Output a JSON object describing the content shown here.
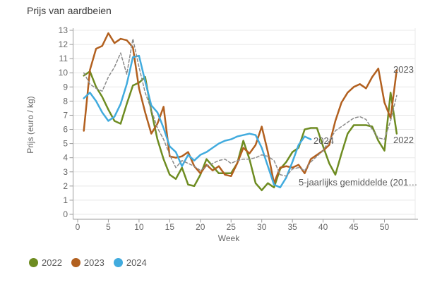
{
  "header": {
    "title": "Prijs van aardbeien"
  },
  "chart_data": {
    "type": "line",
    "title": "Prijs van aardbeien",
    "xlabel": "Week",
    "ylabel": "Prijs (euro / kg)",
    "xlim": [
      0,
      55
    ],
    "ylim": [
      0,
      13
    ],
    "x_ticks": [
      0,
      5,
      10,
      15,
      20,
      25,
      30,
      35,
      40,
      45,
      50
    ],
    "y_ticks": [
      0,
      1,
      2,
      3,
      4,
      5,
      6,
      7,
      8,
      9,
      10,
      11,
      12,
      13
    ],
    "grid": "horizontal",
    "legend_position": "bottom-left",
    "weeks": [
      1,
      2,
      3,
      4,
      5,
      6,
      7,
      8,
      9,
      10,
      11,
      12,
      13,
      14,
      15,
      16,
      17,
      18,
      19,
      20,
      21,
      22,
      23,
      24,
      25,
      26,
      27,
      28,
      29,
      30,
      31,
      32,
      33,
      34,
      35,
      36,
      37,
      38,
      39,
      40,
      41,
      42,
      43,
      44,
      45,
      46,
      47,
      48,
      49,
      50,
      51,
      52
    ],
    "series": [
      {
        "key": "2022",
        "name": "2022",
        "color": "#6e8c21",
        "style": "solid",
        "values": [
          9.8,
          10.1,
          9.0,
          8.3,
          7.4,
          6.6,
          6.4,
          7.8,
          9.1,
          9.3,
          9.7,
          7.3,
          5.3,
          3.9,
          2.8,
          2.5,
          3.3,
          2.1,
          2.0,
          2.8,
          3.9,
          3.4,
          2.9,
          2.9,
          2.9,
          3.6,
          5.2,
          3.9,
          2.2,
          1.7,
          2.2,
          1.9,
          3.2,
          3.7,
          4.4,
          4.7,
          6.0,
          6.1,
          6.1,
          4.8,
          3.6,
          2.8,
          4.3,
          5.7,
          6.3,
          6.3,
          6.3,
          6.2,
          5.2,
          4.5,
          8.6,
          5.7
        ]
      },
      {
        "key": "2023",
        "name": "2023",
        "color": "#b2601f",
        "style": "solid",
        "values": [
          5.9,
          10.2,
          11.7,
          11.9,
          12.8,
          12.1,
          12.4,
          12.3,
          11.8,
          8.9,
          7.2,
          5.7,
          6.4,
          7.6,
          4.1,
          4.0,
          4.1,
          4.4,
          3.4,
          2.9,
          3.5,
          3.1,
          3.4,
          2.8,
          2.7,
          3.6,
          4.7,
          4.3,
          4.9,
          6.2,
          4.4,
          2.2,
          3.3,
          3.4,
          3.3,
          3.5,
          2.9,
          3.9,
          4.2,
          4.5,
          4.9,
          6.6,
          7.9,
          8.6,
          9.0,
          9.2,
          8.9,
          9.7,
          10.3,
          7.9,
          6.8,
          10.2
        ]
      },
      {
        "key": "2024",
        "name": "2024",
        "color": "#41abde",
        "style": "solid",
        "values": [
          8.2,
          8.6,
          8.0,
          7.2,
          6.6,
          6.9,
          7.8,
          9.2,
          11.1,
          11.2,
          9.4,
          7.7,
          7.2,
          6.1,
          4.8,
          4.4,
          3.4,
          4.2,
          3.8,
          4.2,
          4.4,
          4.7,
          5.0,
          5.2,
          5.3,
          5.5,
          5.6,
          5.7,
          5.6,
          4.7,
          3.4,
          2.1,
          1.9,
          2.6,
          3.7,
          4.9,
          5.5,
          5.3
        ]
      },
      {
        "key": "avg5",
        "name": "5-jaarlijks gemiddelde (201…",
        "color": "#8c8c8c",
        "style": "dashed",
        "values": [
          10.0,
          9.2,
          8.9,
          8.7,
          9.7,
          10.4,
          11.4,
          9.9,
          12.4,
          10.4,
          8.6,
          7.4,
          6.1,
          5.3,
          4.2,
          3.3,
          3.8,
          3.6,
          3.4,
          3.1,
          3.4,
          3.6,
          3.8,
          3.9,
          3.6,
          3.8,
          3.9,
          3.9,
          4.0,
          4.2,
          4.1,
          3.8,
          2.8,
          2.7,
          3.2,
          3.3,
          3.1,
          3.7,
          4.1,
          4.5,
          5.2,
          5.9,
          6.2,
          6.5,
          6.8,
          6.9,
          6.7,
          6.0,
          5.4,
          5.3,
          6.6,
          8.4
        ]
      }
    ]
  },
  "legend": {
    "items": [
      {
        "label": "2022",
        "color": "#6e8c21"
      },
      {
        "label": "2023",
        "color": "#b2601f"
      },
      {
        "label": "2024",
        "color": "#41abde"
      }
    ]
  },
  "colors": {
    "grid": "#e8e8e8",
    "axis": "#9b9b9b",
    "tick_text": "#666666",
    "title_text": "#3d3d3d",
    "inline_label_text": "#595959"
  }
}
